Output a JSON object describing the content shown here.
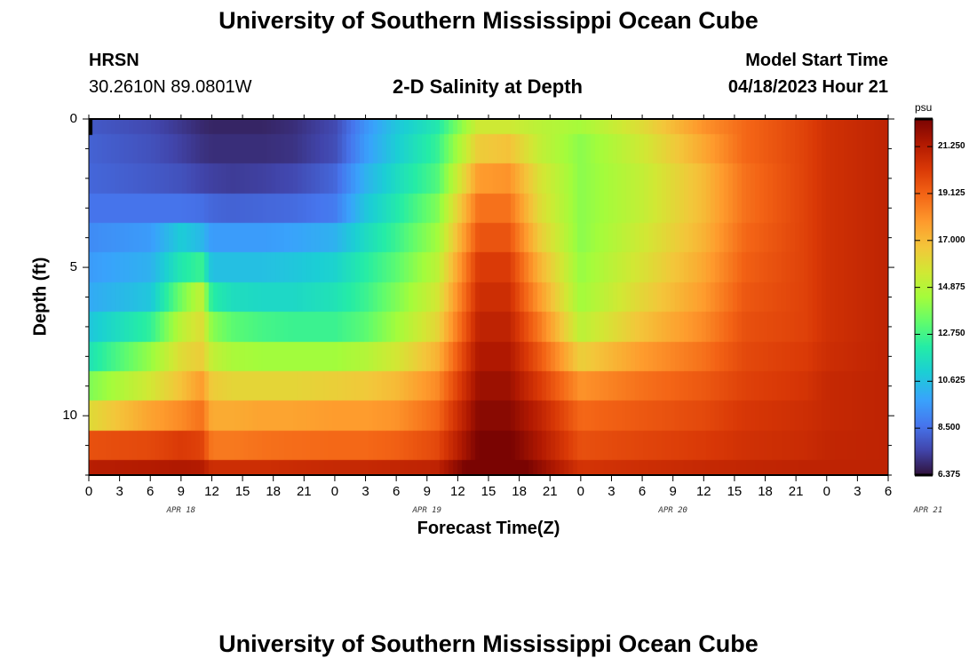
{
  "page": {
    "title_top": "University of Southern Mississippi Ocean Cube",
    "title_bottom": "University of Southern Mississippi Ocean Cube",
    "station": "HRSN",
    "location": "30.2610N  89.0801W",
    "plot_title": "2-D Salinity at Depth",
    "model_label": "Model Start Time",
    "model_time": "04/18/2023 Hour 21"
  },
  "colorbar": {
    "unit": "psu",
    "ticks": [
      "21.250",
      "19.125",
      "17.000",
      "14.875",
      "12.750",
      "10.625",
      "8.500",
      "6.375"
    ]
  },
  "chart_data": {
    "type": "heatmap",
    "title": "2-D Salinity at Depth",
    "xlabel": "Forecast Time(Z)",
    "ylabel": "Depth (ft)",
    "x_tick_labels": [
      "0",
      "3",
      "6",
      "9",
      "12",
      "15",
      "18",
      "21",
      "0",
      "3",
      "6",
      "9",
      "12",
      "15",
      "18",
      "21",
      "0",
      "3",
      "6",
      "9",
      "12",
      "15",
      "18",
      "21",
      "0",
      "3",
      "6"
    ],
    "x_date_labels": [
      "APR 18",
      "APR 19",
      "APR 20",
      "APR 21"
    ],
    "y_tick_labels": [
      "0",
      "5",
      "10"
    ],
    "ylim": [
      0,
      12
    ],
    "zlim": [
      6.375,
      22.5
    ],
    "hours": [
      0,
      6,
      9,
      11,
      12,
      14,
      17,
      20,
      24,
      27,
      30,
      34,
      38,
      41,
      44,
      48,
      54,
      60,
      64,
      70,
      72,
      78
    ],
    "depth_rows": [
      {
        "depth_ft": 0.0,
        "values": [
          8.0,
          7.6,
          7.2,
          6.9,
          6.8,
          6.8,
          6.8,
          7.0,
          7.6,
          9.4,
          10.8,
          12.0,
          15.5,
          15.5,
          15.0,
          14.5,
          16.0,
          18.0,
          19.0,
          20.0,
          20.5,
          21.0
        ]
      },
      {
        "depth_ft": 0.5,
        "values": [
          8.2,
          7.8,
          7.4,
          7.1,
          7.0,
          7.0,
          7.0,
          7.1,
          7.7,
          9.6,
          11.0,
          12.5,
          16.5,
          16.8,
          15.2,
          14.0,
          15.5,
          17.5,
          19.0,
          20.0,
          20.5,
          21.0
        ]
      },
      {
        "depth_ft": 1.5,
        "values": [
          8.3,
          8.0,
          7.8,
          7.5,
          7.4,
          7.3,
          7.4,
          7.6,
          8.3,
          10.2,
          11.5,
          13.0,
          17.8,
          18.0,
          15.8,
          14.0,
          15.2,
          17.0,
          18.8,
          20.0,
          20.5,
          21.0
        ]
      },
      {
        "depth_ft": 2.5,
        "values": [
          8.6,
          8.6,
          8.6,
          8.5,
          8.3,
          8.2,
          8.3,
          8.4,
          8.8,
          10.8,
          12.0,
          13.8,
          18.8,
          18.8,
          16.0,
          14.0,
          15.2,
          17.0,
          18.8,
          20.0,
          20.5,
          21.0
        ]
      },
      {
        "depth_ft": 3.5,
        "values": [
          9.2,
          9.6,
          11.0,
          10.4,
          9.6,
          9.6,
          9.6,
          9.8,
          10.2,
          11.5,
          12.6,
          14.4,
          19.5,
          19.5,
          16.5,
          14.0,
          15.5,
          17.2,
          19.0,
          20.0,
          20.5,
          21.0
        ]
      },
      {
        "depth_ft": 4.5,
        "values": [
          9.6,
          10.2,
          12.0,
          12.6,
          10.6,
          10.6,
          10.6,
          10.8,
          11.2,
          12.2,
          13.2,
          15.0,
          20.2,
          20.2,
          17.2,
          14.2,
          15.8,
          17.5,
          19.2,
          20.0,
          20.5,
          21.0
        ]
      },
      {
        "depth_ft": 5.5,
        "values": [
          10.0,
          10.8,
          13.6,
          15.2,
          12.2,
          11.6,
          11.4,
          11.4,
          11.8,
          12.6,
          13.8,
          15.6,
          20.6,
          20.6,
          17.8,
          14.4,
          16.2,
          17.8,
          19.4,
          20.0,
          20.5,
          21.0
        ]
      },
      {
        "depth_ft": 6.5,
        "values": [
          10.8,
          12.4,
          15.0,
          16.0,
          14.0,
          13.2,
          12.8,
          12.6,
          12.6,
          13.2,
          14.4,
          16.2,
          21.0,
          21.0,
          18.6,
          15.0,
          16.8,
          18.2,
          19.6,
          20.0,
          20.5,
          21.0
        ]
      },
      {
        "depth_ft": 7.5,
        "values": [
          11.8,
          14.2,
          16.0,
          16.5,
          15.2,
          14.6,
          14.4,
          14.4,
          14.4,
          14.8,
          15.6,
          17.2,
          21.4,
          21.4,
          19.4,
          16.4,
          17.8,
          18.8,
          19.8,
          20.2,
          20.6,
          21.0
        ]
      },
      {
        "depth_ft": 8.5,
        "values": [
          13.8,
          15.6,
          16.8,
          17.8,
          16.5,
          16.2,
          16.2,
          16.2,
          16.4,
          16.6,
          17.0,
          18.2,
          21.8,
          21.8,
          20.2,
          18.0,
          18.8,
          19.4,
          20.0,
          20.4,
          20.8,
          21.0
        ]
      },
      {
        "depth_ft": 9.5,
        "values": [
          16.0,
          17.6,
          18.2,
          18.8,
          17.4,
          17.4,
          17.6,
          17.6,
          17.8,
          17.8,
          18.0,
          19.0,
          22.2,
          22.2,
          21.0,
          19.0,
          19.4,
          19.8,
          20.3,
          20.6,
          20.8,
          21.0
        ]
      },
      {
        "depth_ft": 10.5,
        "values": [
          19.6,
          19.8,
          20.2,
          20.0,
          18.6,
          18.6,
          18.8,
          18.9,
          19.0,
          19.0,
          19.2,
          19.8,
          22.5,
          22.6,
          21.4,
          19.6,
          19.9,
          20.2,
          20.5,
          20.7,
          20.9,
          21.0
        ]
      },
      {
        "depth_ft": 11.5,
        "values": [
          21.2,
          21.3,
          21.4,
          21.3,
          20.6,
          20.6,
          20.6,
          20.7,
          20.8,
          20.8,
          20.9,
          21.0,
          23.2,
          23.2,
          22.0,
          20.4,
          20.6,
          20.8,
          20.9,
          21.0,
          21.0,
          21.0
        ]
      }
    ]
  }
}
